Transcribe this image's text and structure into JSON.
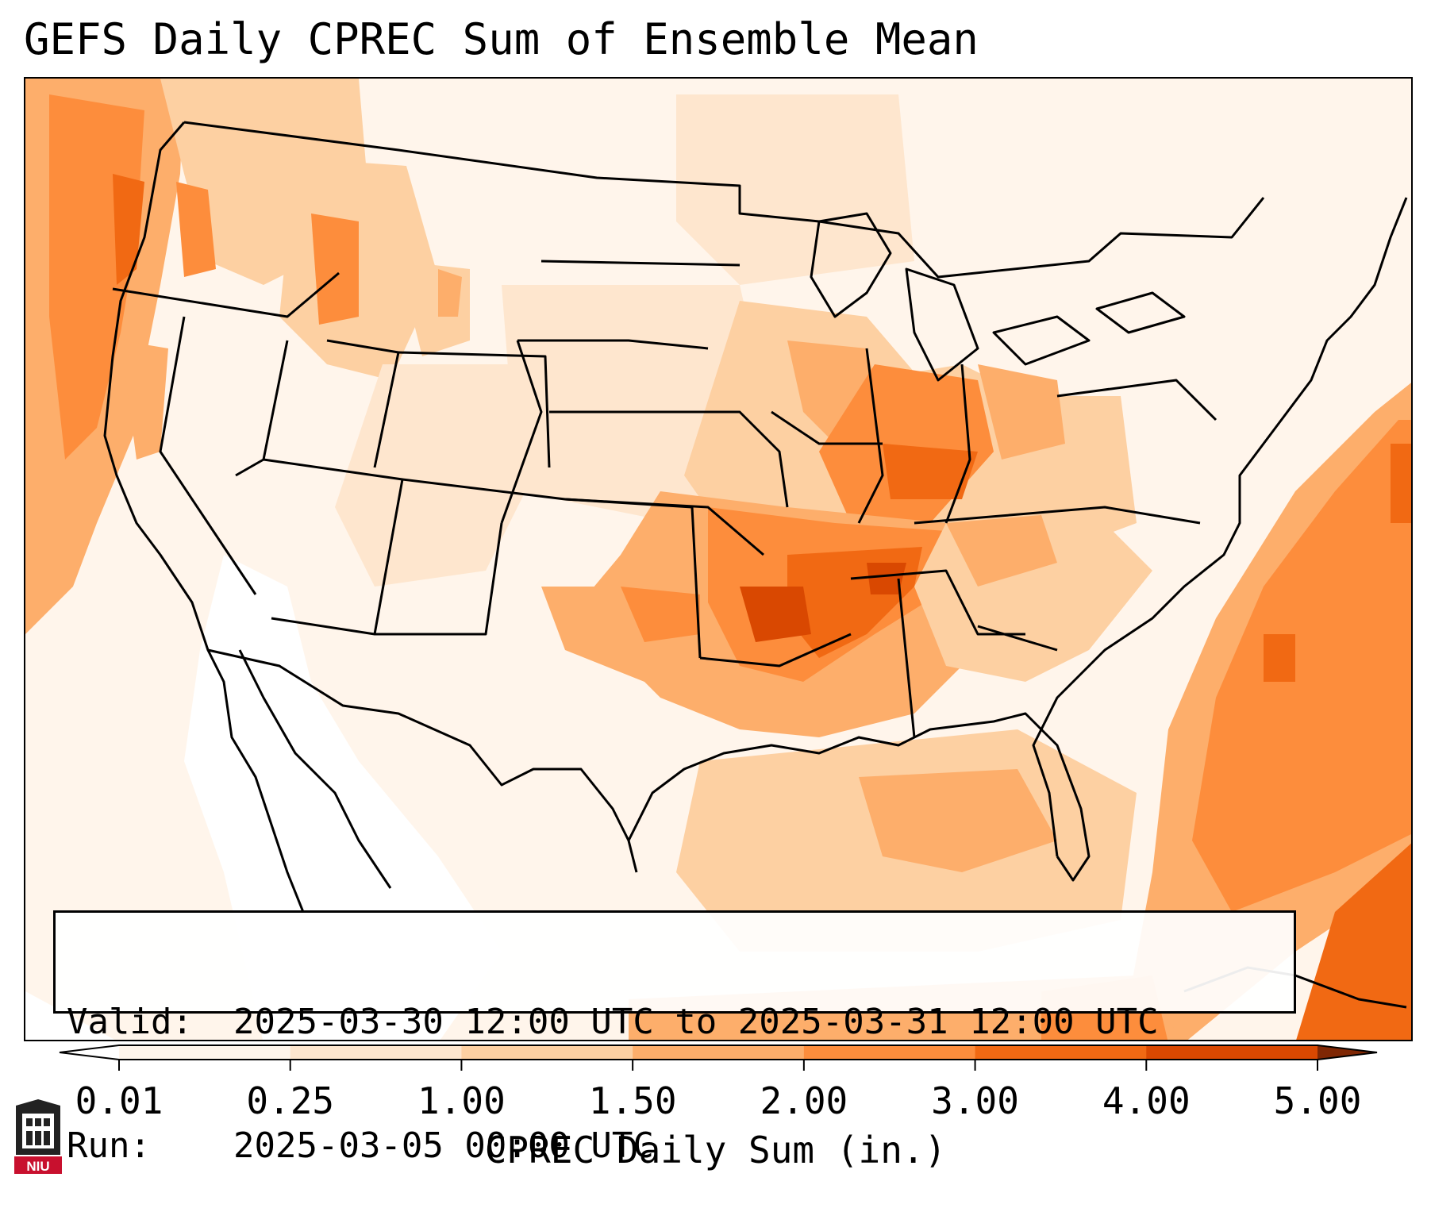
{
  "title": "GEFS Daily CPREC Sum of Ensemble Mean",
  "info": {
    "valid_label": "Valid:",
    "valid_value": "2025-03-30 12:00 UTC to 2025-03-31 12:00 UTC",
    "run_label": "Run:",
    "run_value": "2025-03-05 00:00 UTC"
  },
  "colorbar": {
    "label": "CPREC Daily Sum (in.)",
    "ticks": [
      "0.01",
      "0.25",
      "1.00",
      "1.50",
      "2.00",
      "3.00",
      "4.00",
      "5.00"
    ],
    "colors": [
      "#fff5eb",
      "#fee6ce",
      "#fdd0a2",
      "#fdae6b",
      "#fd8d3c",
      "#f16913",
      "#d94801",
      "#a63603"
    ],
    "under_color": "#ffffff",
    "over_color": "#7f2704"
  },
  "logo_text": "NIU",
  "regions": [
    {
      "name": "pacific-northwest-coast",
      "level": 3
    },
    {
      "name": "northern-rockies",
      "level": 2
    },
    {
      "name": "lower-mississippi-valley",
      "level": 4
    },
    {
      "name": "ohio-valley",
      "level": 3
    },
    {
      "name": "western-atlantic",
      "level": 3
    },
    {
      "name": "gulf-of-mexico",
      "level": 2
    }
  ]
}
